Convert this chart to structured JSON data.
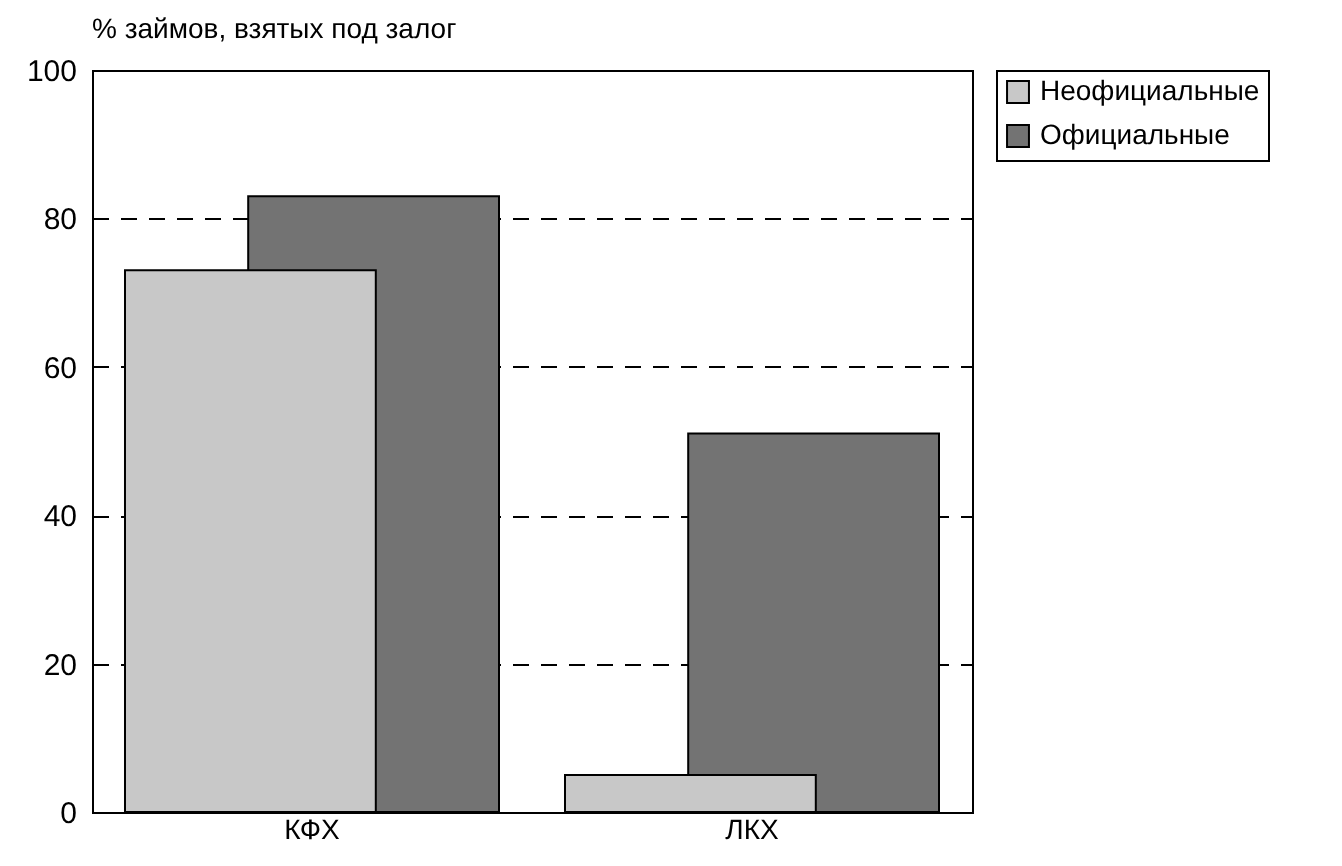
{
  "chart_data": {
    "type": "bar",
    "ylabel": "% займов, взятых под залог",
    "categories": [
      "КФХ",
      "ЛКХ"
    ],
    "series": [
      {
        "name": "Неофициальные",
        "color": "#c8c8c8",
        "values": [
          73,
          5
        ]
      },
      {
        "name": "Официальные",
        "color": "#737373",
        "values": [
          83,
          51
        ]
      }
    ],
    "ylim": [
      0,
      100
    ],
    "yticks": [
      0,
      20,
      40,
      60,
      80,
      100
    ],
    "grid": "y",
    "legend": "right"
  }
}
